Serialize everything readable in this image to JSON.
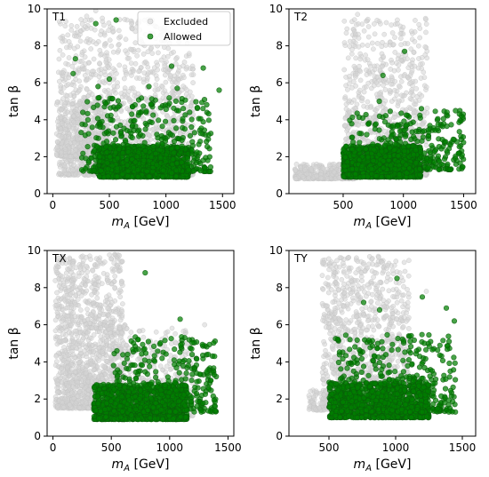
{
  "figure": {
    "legend": {
      "entries": [
        "Excluded",
        "Allowed"
      ],
      "placement": "top-right of panel T1"
    }
  },
  "chart_data": [
    {
      "type": "scatter",
      "panel": "T1",
      "xlabel_base": "m",
      "xlabel_sub": "A",
      "xlabel_unit": " [GeV]",
      "ylabel": "tan β",
      "xlim": [
        -50,
        1600
      ],
      "ylim": [
        0,
        10
      ],
      "xticks": [
        0,
        500,
        1000,
        1500
      ],
      "yticks": [
        0,
        2,
        4,
        6,
        8,
        10
      ],
      "grid": false,
      "series": [
        {
          "name": "Excluded",
          "color": "#d3d3d3",
          "regions": [
            {
              "xmin": 50,
              "xmax": 1250,
              "ymin": 1.0,
              "ymax": 9.5,
              "n": 1300
            },
            {
              "xmin": 30,
              "xmax": 500,
              "ymin": 2.0,
              "ymax": 5.0,
              "n": 450
            }
          ],
          "points": [
            [
              300,
              9.6
            ],
            [
              380,
              9.9
            ],
            [
              250,
              8.8
            ]
          ]
        },
        {
          "name": "Allowed",
          "color": "#008000",
          "regions": [
            {
              "xmin": 400,
              "xmax": 1200,
              "ymin": 0.9,
              "ymax": 2.6,
              "n": 1100
            },
            {
              "xmin": 250,
              "xmax": 1400,
              "ymin": 1.2,
              "ymax": 5.2,
              "n": 420
            }
          ],
          "points": [
            [
              380,
              9.2
            ],
            [
              560,
              9.4
            ],
            [
              200,
              7.3
            ],
            [
              180,
              6.5
            ],
            [
              1050,
              6.9
            ],
            [
              1330,
              6.8
            ],
            [
              1470,
              5.6
            ],
            [
              400,
              5.8
            ],
            [
              500,
              6.2
            ],
            [
              1100,
              5.7
            ],
            [
              850,
              5.8
            ]
          ]
        }
      ]
    },
    {
      "type": "scatter",
      "panel": "T2",
      "xlabel_base": "m",
      "xlabel_sub": "A",
      "xlabel_unit": " [GeV]",
      "ylabel": "tan β",
      "xlim": [
        50,
        1600
      ],
      "ylim": [
        0,
        10
      ],
      "xticks": [
        500,
        1000,
        1500
      ],
      "yticks": [
        0,
        2,
        4,
        6,
        8,
        10
      ],
      "grid": false,
      "series": [
        {
          "name": "Excluded",
          "color": "#d3d3d3",
          "regions": [
            {
              "xmin": 500,
              "xmax": 1200,
              "ymin": 1.0,
              "ymax": 9.5,
              "n": 900
            },
            {
              "xmin": 100,
              "xmax": 600,
              "ymin": 0.8,
              "ymax": 1.6,
              "n": 350
            }
          ],
          "points": [
            [
              620,
              9.7
            ],
            [
              950,
              9.2
            ]
          ]
        },
        {
          "name": "Allowed",
          "color": "#008000",
          "regions": [
            {
              "xmin": 500,
              "xmax": 1150,
              "ymin": 0.9,
              "ymax": 2.6,
              "n": 1100
            },
            {
              "xmin": 550,
              "xmax": 1500,
              "ymin": 1.3,
              "ymax": 4.5,
              "n": 380
            }
          ],
          "points": [
            [
              1010,
              7.7
            ],
            [
              830,
              6.4
            ],
            [
              800,
              5.0
            ],
            [
              1150,
              4.6
            ]
          ]
        }
      ]
    },
    {
      "type": "scatter",
      "panel": "TX",
      "xlabel_base": "m",
      "xlabel_sub": "A",
      "xlabel_unit": " [GeV]",
      "ylabel": "tan β",
      "xlim": [
        -50,
        1550
      ],
      "ylim": [
        0,
        10
      ],
      "xticks": [
        0,
        500,
        1000,
        1500
      ],
      "yticks": [
        0,
        2,
        4,
        6,
        8,
        10
      ],
      "grid": false,
      "series": [
        {
          "name": "Excluded",
          "color": "#d3d3d3",
          "regions": [
            {
              "xmin": 20,
              "xmax": 600,
              "ymin": 1.5,
              "ymax": 9.8,
              "n": 1300
            },
            {
              "xmin": 400,
              "xmax": 1200,
              "ymin": 1.0,
              "ymax": 6.0,
              "n": 500
            }
          ],
          "points": [
            [
              1300,
              6.0
            ]
          ]
        },
        {
          "name": "Allowed",
          "color": "#008000",
          "regions": [
            {
              "xmin": 350,
              "xmax": 1150,
              "ymin": 0.9,
              "ymax": 2.8,
              "n": 1100
            },
            {
              "xmin": 500,
              "xmax": 1400,
              "ymin": 1.3,
              "ymax": 5.5,
              "n": 350
            }
          ],
          "points": [
            [
              790,
              8.8
            ],
            [
              1090,
              6.3
            ],
            [
              1330,
              4.4
            ],
            [
              730,
              5.2
            ]
          ]
        }
      ]
    },
    {
      "type": "scatter",
      "panel": "TY",
      "xlabel_base": "m",
      "xlabel_sub": "A",
      "xlabel_unit": " [GeV]",
      "ylabel": "tan β",
      "xlim": [
        200,
        1600
      ],
      "ylim": [
        0,
        10
      ],
      "xticks": [
        500,
        1000,
        1500
      ],
      "yticks": [
        0,
        2,
        4,
        6,
        8,
        10
      ],
      "grid": false,
      "series": [
        {
          "name": "Excluded",
          "color": "#d3d3d3",
          "regions": [
            {
              "xmin": 450,
              "xmax": 1100,
              "ymin": 1.5,
              "ymax": 9.7,
              "n": 1100
            },
            {
              "xmin": 350,
              "xmax": 600,
              "ymin": 1.4,
              "ymax": 2.5,
              "n": 120
            }
          ],
          "points": [
            [
              1060,
              7.6
            ],
            [
              1230,
              7.8
            ]
          ]
        },
        {
          "name": "Allowed",
          "color": "#008000",
          "regions": [
            {
              "xmin": 500,
              "xmax": 1250,
              "ymin": 1.0,
              "ymax": 2.9,
              "n": 1100
            },
            {
              "xmin": 550,
              "xmax": 1450,
              "ymin": 1.3,
              "ymax": 5.5,
              "n": 420
            }
          ],
          "points": [
            [
              1010,
              8.5
            ],
            [
              1200,
              7.5
            ],
            [
              760,
              7.2
            ],
            [
              1440,
              6.2
            ],
            [
              1380,
              6.9
            ],
            [
              880,
              6.8
            ]
          ]
        }
      ]
    }
  ]
}
